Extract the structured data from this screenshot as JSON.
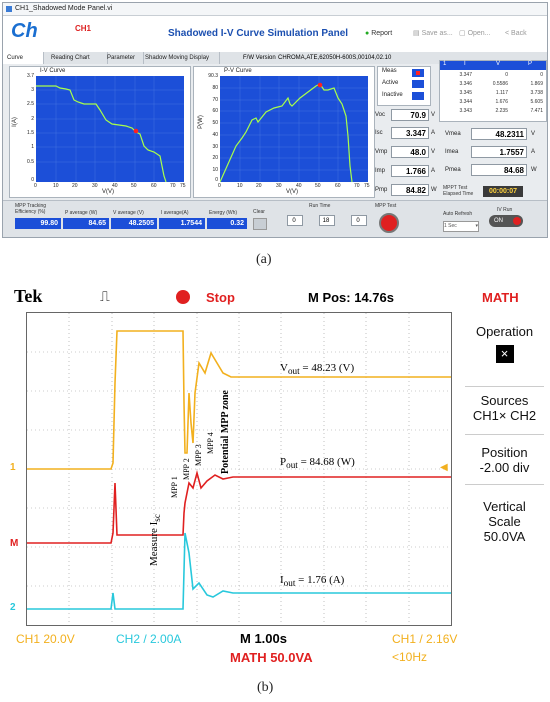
{
  "panel_a": {
    "window_title": "CH1_Shadowed Mode Panel.vi",
    "logo": "Ch",
    "channel": "CH1",
    "app_title": "Shadowed I-V Curve Simulation Panel",
    "toolbar": [
      "Report",
      "Save as...",
      "Open...",
      "Back"
    ],
    "tabs": [
      "Curve",
      "Reading Chart",
      "Parameter",
      "Shadow Moving Display"
    ],
    "fw_label": "F/W Version",
    "fw_value": "CHROMA,ATE,62050H-600S,00104,02.10",
    "iv_curve": {
      "title": "I-V Curve",
      "ylabel": "I(A)",
      "xlabel": "V(V)",
      "yticks": [
        "3.7",
        "3",
        "2.5",
        "2",
        "1.5",
        "1",
        "0.5",
        "0"
      ],
      "xticks": [
        "0",
        "10",
        "20",
        "30",
        "40",
        "50",
        "60",
        "70",
        "75"
      ]
    },
    "pv_curve": {
      "title": "P-V Curve",
      "ylabel": "P(W)",
      "xlabel": "V(V)",
      "yticks": [
        "90.3",
        "80",
        "70",
        "60",
        "50",
        "40",
        "30",
        "20",
        "10",
        "0"
      ],
      "xticks": [
        "0",
        "10",
        "20",
        "30",
        "40",
        "50",
        "60",
        "70",
        "75"
      ]
    },
    "legend": [
      "Meas",
      "Active",
      "Inactive"
    ],
    "readings": [
      {
        "label": "Voc",
        "value": "70.9",
        "unit": "V"
      },
      {
        "label": "Isc",
        "value": "3.347",
        "unit": "A"
      },
      {
        "label": "Vmp",
        "value": "48.0",
        "unit": "V"
      },
      {
        "label": "Imp",
        "value": "1.766",
        "unit": "A"
      },
      {
        "label": "Pmp",
        "value": "84.82",
        "unit": "W"
      }
    ],
    "table": {
      "index": "1",
      "headers": [
        "I",
        "V",
        "P"
      ],
      "rows": [
        [
          "3.347",
          "0",
          "0"
        ],
        [
          "3.346",
          "0.5586",
          "1.869"
        ],
        [
          "3.345",
          "1.117",
          "3.738"
        ],
        [
          "3.344",
          "1.676",
          "5.605"
        ],
        [
          "3.343",
          "2.235",
          "7.471"
        ]
      ]
    },
    "mpp": [
      {
        "label": "Vmea",
        "value": "48.2311",
        "unit": "V"
      },
      {
        "label": "Imea",
        "value": "1.7557",
        "unit": "A"
      },
      {
        "label": "Pmea",
        "value": "84.68",
        "unit": "W"
      }
    ],
    "elapsed_label": "MPPT Test Elapsed Time",
    "elapsed_value": "00:00:07",
    "bottom": {
      "tracking_label": "MPP Tracking Efficiency (%)",
      "tracking_value": "99.80",
      "p_avg_label": "P average (W)",
      "p_avg_value": "84.65",
      "v_avg_label": "V average (V)",
      "v_avg_value": "48.2505",
      "i_avg_label": "I average(A)",
      "i_avg_value": "1.7544",
      "energy_label": "Energy (Wh)",
      "energy_value": "0.32",
      "clear": "Clear",
      "run_time": "Run Time",
      "run_h": "0",
      "run_m": "18",
      "run_s": "0",
      "mpp_test": "MPP Test",
      "auto_refresh": "Auto Refresh",
      "auto_refresh_val": "1 Sec",
      "iv_run": "IV Run",
      "on": "ON"
    }
  },
  "caption_a": "(a)",
  "panel_b": {
    "brand": "Tek",
    "status": "Stop",
    "mpos": "M Pos: 14.76s",
    "math": "MATH",
    "vout": "V",
    "vout_sub": "out",
    "vout_val": "= 48.23 (V)",
    "pout": "P",
    "pout_sub": "out",
    "pout_val": "= 84.68 (W)",
    "iout": "I",
    "iout_sub": "out",
    "iout_val": "= 1.76 (A)",
    "measure": "Measure I",
    "measure_sub": "sc",
    "mpp_labels": [
      "MPP 1",
      "MPP 2",
      "MPP 3",
      "MPP 4"
    ],
    "potential": "Potential MPP zone",
    "markers": [
      "1",
      "M",
      "2"
    ],
    "side": {
      "operation": "Operation",
      "sources": "Sources",
      "sources_val": "CH1× CH2",
      "position": "Position",
      "position_val": "-2.00 div",
      "vertical": "Vertical",
      "scale": "Scale",
      "scale_val": "50.0VA"
    },
    "footer": {
      "ch1": "CH1  20.0V",
      "ch2": "CH2 / 2.00A",
      "timebase": "M 1.00s",
      "trigger": "CH1 / 2.16V",
      "math_scale": "MATH 50.0VA",
      "freq": "<10Hz"
    },
    "colors": {
      "ch1": "#f2b01e",
      "math": "#e02020",
      "ch2": "#28c8dc"
    }
  },
  "caption_b": "(b)"
}
